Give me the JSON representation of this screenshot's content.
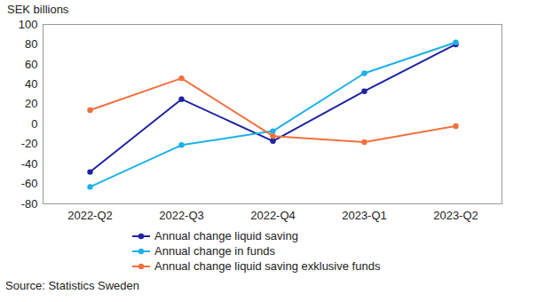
{
  "chart_data": {
    "type": "line",
    "y_label": "SEK billions",
    "categories": [
      "2022-Q2",
      "2022-Q3",
      "2022-Q4",
      "2023-Q1",
      "2023-Q2"
    ],
    "series": [
      {
        "name": "Annual change liquid saving",
        "color": "#1f23a3",
        "marker": "circle",
        "values": [
          -48,
          25,
          -17,
          33,
          80
        ]
      },
      {
        "name": "Annual change in funds",
        "color": "#1cb1e6",
        "marker": "circle",
        "values": [
          -63,
          -21,
          -7,
          51,
          82
        ]
      },
      {
        "name": "Annual change liquid saving exklusive funds",
        "color": "#f0703c",
        "marker": "circle",
        "values": [
          14,
          46,
          -12,
          -18,
          -2
        ]
      }
    ],
    "ylim": [
      -80,
      100
    ],
    "yticks": [
      -80,
      -60,
      -40,
      -20,
      0,
      20,
      40,
      60,
      80,
      100
    ],
    "grid": false,
    "legend": "bottom",
    "source": "Source: Statistics Sweden"
  }
}
